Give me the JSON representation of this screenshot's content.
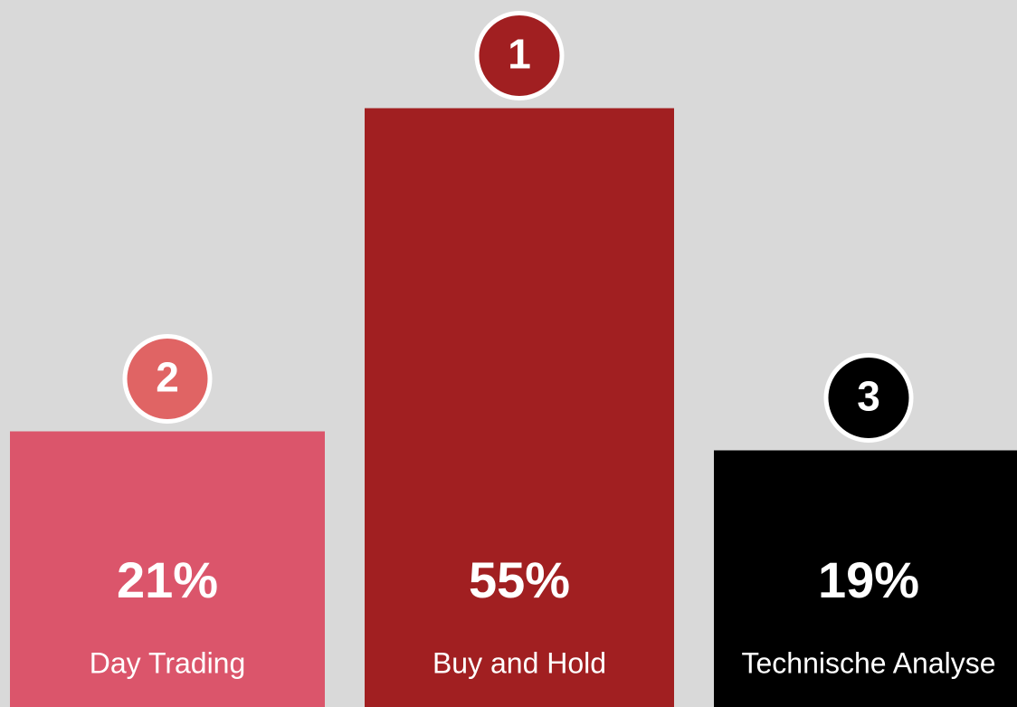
{
  "chart_data": {
    "type": "bar",
    "categories": [
      "Day Trading",
      "Buy and Hold",
      "Technische Analyse"
    ],
    "values": [
      21,
      55,
      19
    ],
    "value_labels": [
      "21%",
      "55%",
      "19%"
    ],
    "ranks": [
      2,
      1,
      3
    ],
    "colors": [
      "#db556b",
      "#a11f21",
      "#000000"
    ],
    "badge_colors": [
      "#e06464",
      "#a11f21",
      "#000000"
    ],
    "ylim": [
      -8,
      60
    ]
  }
}
